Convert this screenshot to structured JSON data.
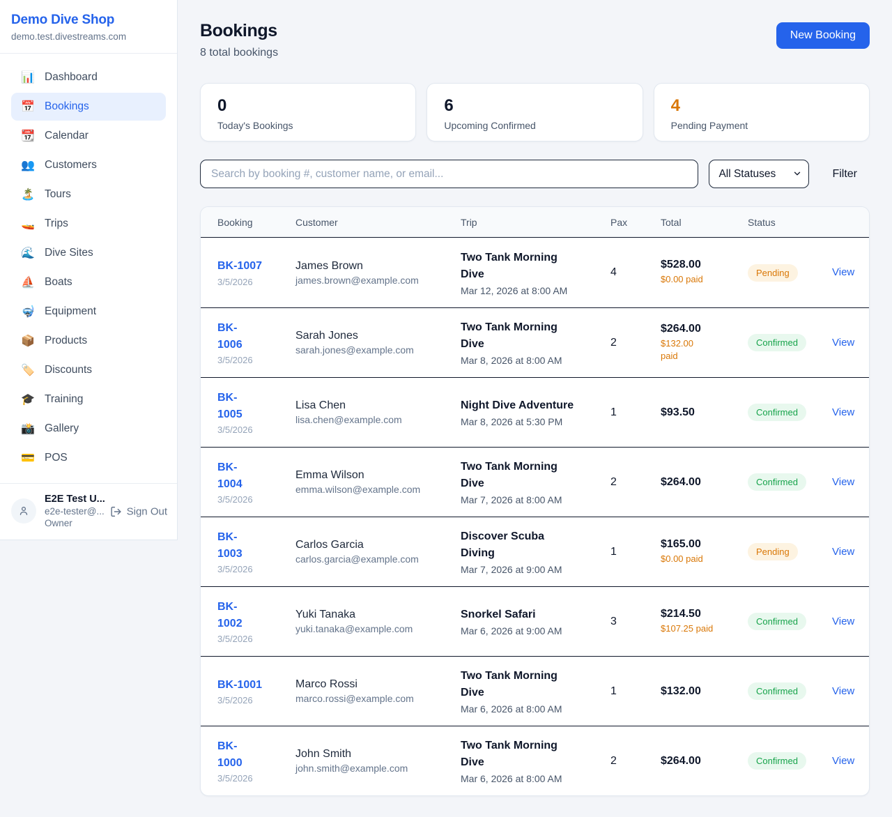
{
  "colors": {
    "accent": "#2563eb",
    "pending": "#d97706",
    "confirmed": "#16a34a",
    "dark": "#0f172a"
  },
  "sidebar": {
    "brand": {
      "name": "Demo Dive Shop",
      "domain": "demo.test.divestreams.com"
    },
    "nav": [
      {
        "key": "dashboard",
        "label": "Dashboard",
        "icon": "📊",
        "icon_name": "bar-chart-icon",
        "active": false
      },
      {
        "key": "bookings",
        "label": "Bookings",
        "icon": "📅",
        "icon_name": "calendar-icon",
        "active": true
      },
      {
        "key": "calendar",
        "label": "Calendar",
        "icon": "📆",
        "icon_name": "tear-off-calendar-icon",
        "active": false
      },
      {
        "key": "customers",
        "label": "Customers",
        "icon": "👥",
        "icon_name": "people-icon",
        "active": false
      },
      {
        "key": "tours",
        "label": "Tours",
        "icon": "🏝️",
        "icon_name": "island-icon",
        "active": false
      },
      {
        "key": "trips",
        "label": "Trips",
        "icon": "🚤",
        "icon_name": "speedboat-icon",
        "active": false
      },
      {
        "key": "dive-sites",
        "label": "Dive Sites",
        "icon": "🌊",
        "icon_name": "wave-icon",
        "active": false
      },
      {
        "key": "boats",
        "label": "Boats",
        "icon": "⛵",
        "icon_name": "sailboat-icon",
        "active": false
      },
      {
        "key": "equipment",
        "label": "Equipment",
        "icon": "🤿",
        "icon_name": "diving-mask-icon",
        "active": false
      },
      {
        "key": "products",
        "label": "Products",
        "icon": "📦",
        "icon_name": "package-icon",
        "active": false
      },
      {
        "key": "discounts",
        "label": "Discounts",
        "icon": "🏷️",
        "icon_name": "tag-icon",
        "active": false
      },
      {
        "key": "training",
        "label": "Training",
        "icon": "🎓",
        "icon_name": "graduation-cap-icon",
        "active": false
      },
      {
        "key": "gallery",
        "label": "Gallery",
        "icon": "📸",
        "icon_name": "camera-icon",
        "active": false
      },
      {
        "key": "pos",
        "label": "POS",
        "icon": "💳",
        "icon_name": "credit-card-icon",
        "active": false
      }
    ],
    "user": {
      "name": "E2E Test U...",
      "email": "e2e-tester@...",
      "role": "Owner",
      "sign_out": "Sign Out"
    }
  },
  "header": {
    "title": "Bookings",
    "subtitle": "8 total bookings",
    "new_booking_label": "New Booking"
  },
  "stats": [
    {
      "value": "0",
      "label": "Today's Bookings",
      "color": "#0f172a"
    },
    {
      "value": "6",
      "label": "Upcoming Confirmed",
      "color": "#0f172a"
    },
    {
      "value": "4",
      "label": "Pending Payment",
      "color": "#d97706"
    }
  ],
  "filters": {
    "search_placeholder": "Search by booking #, customer name, or email...",
    "status_selected": "All Statuses",
    "filter_label": "Filter"
  },
  "table": {
    "columns": [
      "Booking",
      "Customer",
      "Trip",
      "Pax",
      "Total",
      "Status"
    ],
    "rows": [
      {
        "id": "BK-1007",
        "date": "3/5/2026",
        "customer": "James Brown",
        "email": "james.brown@example.com",
        "trip": "Two Tank Morning\nDive",
        "trip_datetime": "Mar 12, 2026 at 8:00 AM",
        "pax": "4",
        "total": "$528.00",
        "paid": "$0.00 paid",
        "status": "Pending",
        "action": "View"
      },
      {
        "id": "BK-\n1006",
        "date": "3/5/2026",
        "customer": "Sarah Jones",
        "email": "sarah.jones@example.com",
        "trip": "Two Tank Morning\nDive",
        "trip_datetime": "Mar 8, 2026 at 8:00 AM",
        "pax": "2",
        "total": "$264.00",
        "paid": "$132.00\npaid",
        "status": "Confirmed",
        "action": "View"
      },
      {
        "id": "BK-\n1005",
        "date": "3/5/2026",
        "customer": "Lisa Chen",
        "email": "lisa.chen@example.com",
        "trip": "Night Dive Adventure",
        "trip_datetime": "Mar 8, 2026 at 5:30 PM",
        "pax": "1",
        "total": "$93.50",
        "paid": "",
        "status": "Confirmed",
        "action": "View"
      },
      {
        "id": "BK-\n1004",
        "date": "3/5/2026",
        "customer": "Emma Wilson",
        "email": "emma.wilson@example.com",
        "trip": "Two Tank Morning\nDive",
        "trip_datetime": "Mar 7, 2026 at 8:00 AM",
        "pax": "2",
        "total": "$264.00",
        "paid": "",
        "status": "Confirmed",
        "action": "View"
      },
      {
        "id": "BK-\n1003",
        "date": "3/5/2026",
        "customer": "Carlos Garcia",
        "email": "carlos.garcia@example.com",
        "trip": "Discover Scuba\nDiving",
        "trip_datetime": "Mar 7, 2026 at 9:00 AM",
        "pax": "1",
        "total": "$165.00",
        "paid": "$0.00 paid",
        "status": "Pending",
        "action": "View"
      },
      {
        "id": "BK-\n1002",
        "date": "3/5/2026",
        "customer": "Yuki Tanaka",
        "email": "yuki.tanaka@example.com",
        "trip": "Snorkel Safari",
        "trip_datetime": "Mar 6, 2026 at 9:00 AM",
        "pax": "3",
        "total": "$214.50",
        "paid": "$107.25 paid",
        "status": "Confirmed",
        "action": "View"
      },
      {
        "id": "BK-1001",
        "date": "3/5/2026",
        "customer": "Marco Rossi",
        "email": "marco.rossi@example.com",
        "trip": "Two Tank Morning\nDive",
        "trip_datetime": "Mar 6, 2026 at 8:00 AM",
        "pax": "1",
        "total": "$132.00",
        "paid": "",
        "status": "Confirmed",
        "action": "View"
      },
      {
        "id": "BK-\n1000",
        "date": "3/5/2026",
        "customer": "John Smith",
        "email": "john.smith@example.com",
        "trip": "Two Tank Morning\nDive",
        "trip_datetime": "Mar 6, 2026 at 8:00 AM",
        "pax": "2",
        "total": "$264.00",
        "paid": "",
        "status": "Confirmed",
        "action": "View"
      }
    ]
  }
}
